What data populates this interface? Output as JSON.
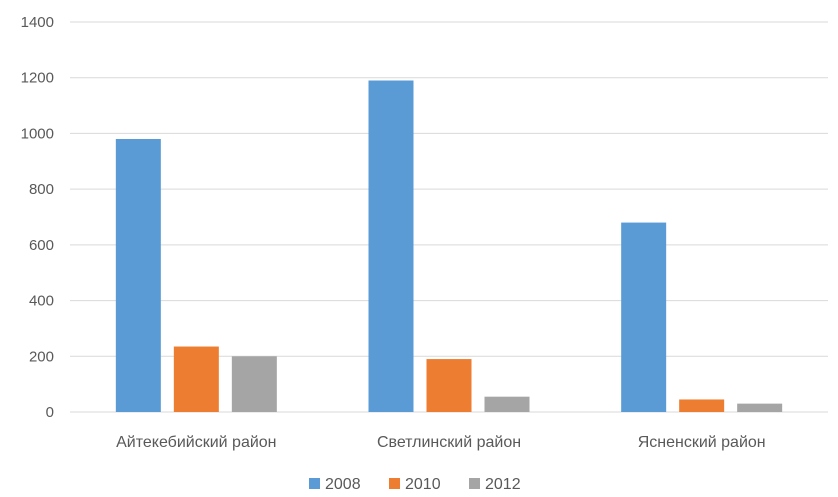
{
  "chart_data": {
    "type": "bar",
    "categories": [
      "Айтекебийский район",
      "Светлинский район",
      "Ясненский район"
    ],
    "series": [
      {
        "name": "2008",
        "color": "#5b9bd5",
        "values": [
          980,
          1190,
          680
        ]
      },
      {
        "name": "2010",
        "color": "#ed7d31",
        "values": [
          235,
          190,
          45
        ]
      },
      {
        "name": "2012",
        "color": "#a5a5a5",
        "values": [
          200,
          55,
          30
        ]
      }
    ],
    "y_ticks": [
      "0",
      "200",
      "400",
      "600",
      "800",
      "1000",
      "1200",
      "1400"
    ],
    "ylim": [
      0,
      1400
    ],
    "grid": true,
    "legend": "bottom"
  }
}
